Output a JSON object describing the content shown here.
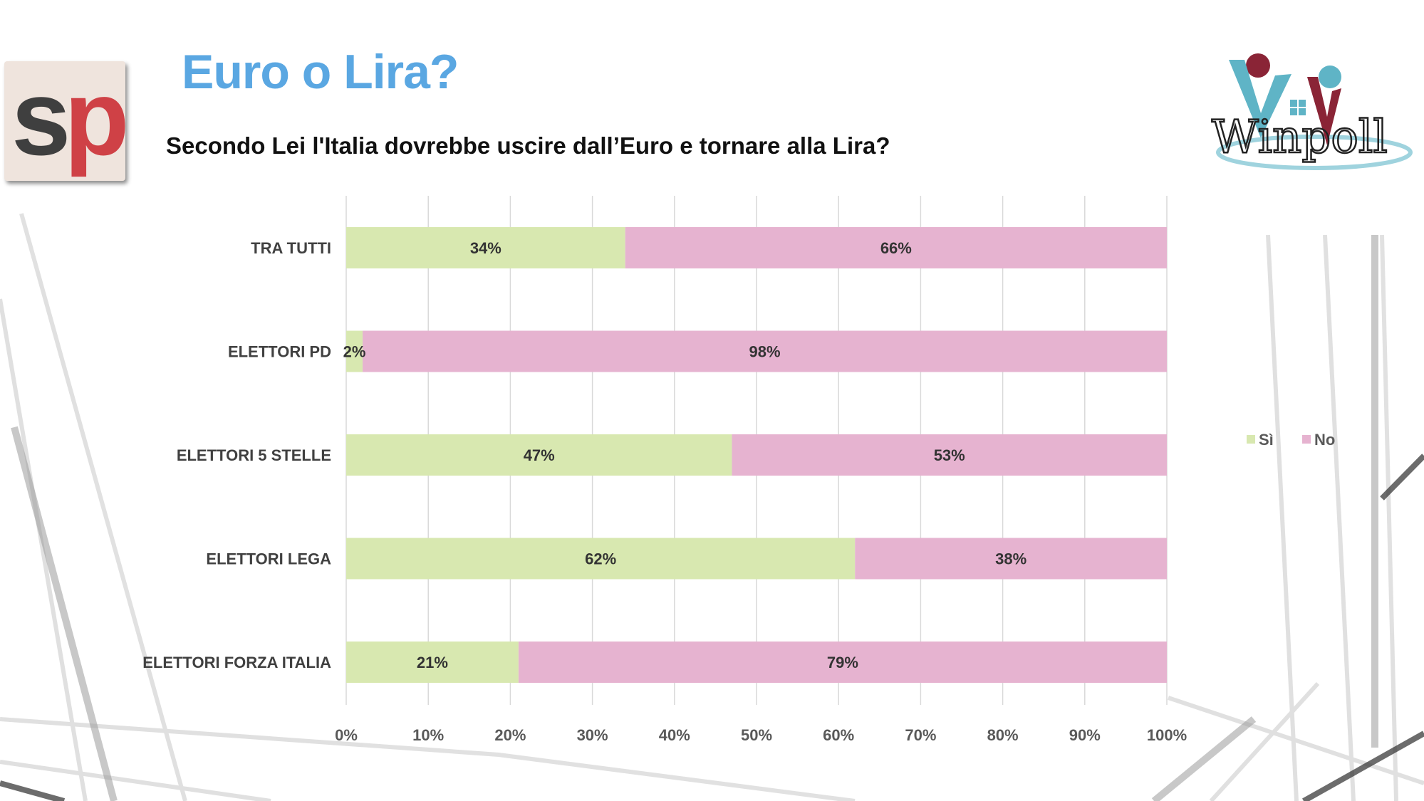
{
  "slide": {
    "title": "Euro o Lira?",
    "subtitle": "Secondo Lei l'Italia dovrebbe uscire dall’Euro e tornare alla Lira?",
    "logo_left": {
      "text_s": "s",
      "text_p": "p",
      "colors": {
        "s": "#3f3f3f",
        "p": "#cf4146",
        "background": "#efe4dd"
      }
    },
    "logo_right": {
      "text": "Winpoll",
      "colors": {
        "teal": "#5fb4c6",
        "maroon": "#8a2436",
        "dark": "#222222"
      }
    }
  },
  "chart_data": {
    "type": "bar",
    "orientation": "horizontal",
    "stacking": "percent",
    "categories": [
      "TRA TUTTI",
      "ELETTORI PD",
      "ELETTORI 5 STELLE",
      "ELETTORI LEGA",
      "ELETTORI FORZA ITALIA"
    ],
    "series": [
      {
        "name": "Sì",
        "values": [
          34,
          2,
          47,
          62,
          21
        ],
        "labels": [
          "34%",
          "2%",
          "47%",
          "62%",
          "21%"
        ],
        "color": "#d8e8b0"
      },
      {
        "name": "No",
        "values": [
          66,
          98,
          53,
          38,
          79
        ],
        "labels": [
          "66%",
          "98%",
          "53%",
          "38%",
          "79%"
        ],
        "color": "#e6b3d0"
      }
    ],
    "xlim": [
      0,
      100
    ],
    "xticks": [
      "0%",
      "10%",
      "20%",
      "30%",
      "40%",
      "50%",
      "60%",
      "70%",
      "80%",
      "90%",
      "100%"
    ],
    "grid": "vertical",
    "legend": "right"
  }
}
